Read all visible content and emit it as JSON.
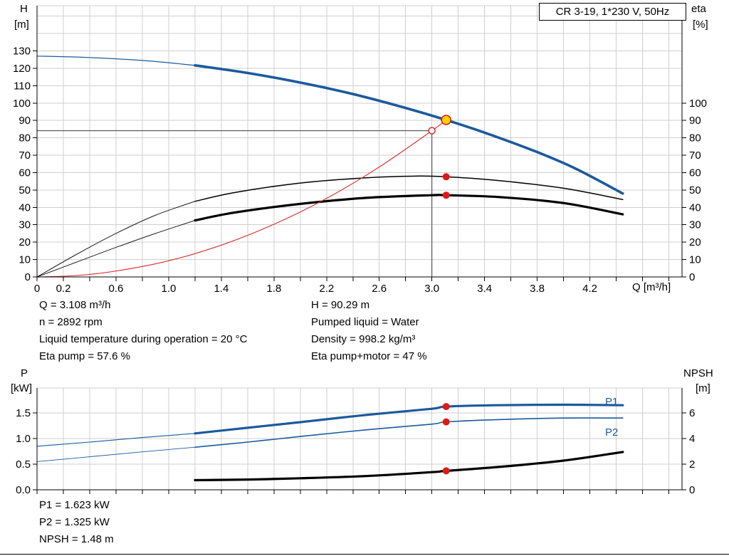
{
  "title_box": "CR 3-19, 1*230 V, 50Hz",
  "axis_unit_labels": {
    "h": "H",
    "h_unit": "[m]",
    "eta": "eta",
    "eta_unit": "[%]",
    "q": "Q [m³/h]",
    "p": "P",
    "p_unit": "[kW]",
    "npsh": "NPSH",
    "npsh_unit": "[m]"
  },
  "curve_labels": {
    "p1": "P1",
    "p2": "P2"
  },
  "results_top": {
    "left": [
      "Q = 3.108 m³/h",
      "n = 2892 rpm",
      "Liquid temperature during operation = 20 °C",
      "Eta pump = 57.6 %"
    ],
    "right": [
      "H = 90.29 m",
      "Pumped liquid = Water",
      "Density = 998.2 kg/m³",
      "Eta pump+motor = 47 %"
    ]
  },
  "results_bottom": [
    "P1 = 1.623 kW",
    "P2 = 1.325 kW",
    "NPSH = 1.48 m"
  ],
  "colors": {
    "curve_blue": "#1c5a9c",
    "curve_red": "#d83030",
    "grid": "#cfcfcf",
    "guide": "#3a3a3a",
    "axis": "#000000",
    "point_red": "#e01818",
    "point_yellow": "#ffd400"
  },
  "chart_data": [
    {
      "id": "top",
      "type": "line",
      "title": "CR 3-19, 1*230 V, 50Hz",
      "xlabel": "Q [m³/h]",
      "ylabel_left": "H [m]",
      "ylabel_right": "eta [%]",
      "xlim": [
        0,
        4.9
      ],
      "ylim_left": [
        0,
        156
      ],
      "ylim_right": [
        0,
        156
      ],
      "xtick_step": 0.2,
      "grid_ystep": 10,
      "xticks_labeled": [
        "0",
        "0.2",
        "0.6",
        "1.0",
        "1.4",
        "1.8",
        "2.2",
        "2.6",
        "3.0",
        "3.4",
        "3.8",
        "4.2"
      ],
      "yticks_left": [
        "0",
        "10",
        "20",
        "30",
        "40",
        "50",
        "60",
        "70",
        "80",
        "90",
        "100",
        "110",
        "120",
        "130"
      ],
      "yticks_right": [
        "0",
        "10",
        "20",
        "30",
        "40",
        "50",
        "60",
        "70",
        "80",
        "90",
        "100"
      ],
      "guides": {
        "duty_q": 3.0,
        "duty_h": 84.1
      },
      "series": [
        {
          "name": "head-curve-low-flow",
          "axis": "left",
          "color": "#1c5a9c",
          "width": 1.2,
          "x": [
            0,
            0.4,
            0.8,
            1.2
          ],
          "y": [
            127,
            126.2,
            124.5,
            121.7
          ]
        },
        {
          "name": "head-curve",
          "axis": "left",
          "color": "#1c5a9c",
          "width": 3.6,
          "x": [
            1.2,
            1.6,
            2.0,
            2.4,
            2.8,
            3.108,
            3.4,
            3.8,
            4.1,
            4.45
          ],
          "y": [
            121.7,
            117.3,
            111.8,
            105.2,
            97.2,
            90.29,
            83,
            71.8,
            62,
            48
          ]
        },
        {
          "name": "eta-pump-low-flow",
          "axis": "right",
          "color": "#000000",
          "width": 0.9,
          "x": [
            0,
            0.3,
            0.6,
            0.9,
            1.2
          ],
          "y": [
            0,
            13,
            25,
            35.5,
            43.5
          ]
        },
        {
          "name": "eta-pump-curve",
          "axis": "right",
          "color": "#000000",
          "width": 1.5,
          "x": [
            1.2,
            1.5,
            2.0,
            2.5,
            2.9,
            3.108,
            3.5,
            4.0,
            4.45
          ],
          "y": [
            43.5,
            48.5,
            54,
            57,
            58,
            57.6,
            55.5,
            51,
            44.5
          ]
        },
        {
          "name": "eta-pump-motor-low-flow",
          "axis": "right",
          "color": "#000000",
          "width": 0.9,
          "x": [
            0,
            0.3,
            0.6,
            0.9,
            1.2
          ],
          "y": [
            0,
            8.5,
            17,
            25,
            32.5
          ]
        },
        {
          "name": "eta-pump-motor-curve",
          "axis": "right",
          "color": "#000000",
          "width": 3.2,
          "x": [
            1.2,
            1.5,
            2.0,
            2.5,
            3.0,
            3.108,
            3.5,
            4.0,
            4.45
          ],
          "y": [
            32.5,
            37,
            42,
            45.5,
            47,
            47,
            46,
            42.5,
            36
          ]
        },
        {
          "name": "system-curve",
          "axis": "left",
          "color": "#d83030",
          "width": 1.1,
          "x": [
            0,
            0.3,
            0.6,
            1.0,
            1.4,
            1.8,
            2.2,
            2.6,
            3.0,
            3.108
          ],
          "y": [
            0,
            0.8,
            3.4,
            9.3,
            18.3,
            30.3,
            45.2,
            63.2,
            84.1,
            90.29
          ]
        }
      ],
      "points": [
        {
          "name": "requested-duty-point",
          "x": 3.0,
          "y": 84.1,
          "axis": "left",
          "style": "open-red"
        },
        {
          "name": "operating-point",
          "x": 3.108,
          "y": 90.29,
          "axis": "left",
          "style": "yellow"
        },
        {
          "name": "eta-pump-operating-point",
          "x": 3.108,
          "y": 57.6,
          "axis": "right",
          "style": "red"
        },
        {
          "name": "eta-pump-motor-operating-point",
          "x": 3.108,
          "y": 47,
          "axis": "right",
          "style": "red"
        }
      ]
    },
    {
      "id": "bottom",
      "type": "line",
      "title": "",
      "xlabel": "",
      "ylabel_left": "P [kW]",
      "ylabel_right": "NPSH [m]",
      "xlim": [
        0,
        4.9
      ],
      "ylim_left": [
        0,
        1.986
      ],
      "ylim_right": [
        0,
        7.944
      ],
      "xtick_step": 0.2,
      "grid_ystep": 0.5,
      "xticks_labeled": [],
      "yticks_left": [
        "0.0",
        "0.5",
        "1.0",
        "1.5"
      ],
      "yticks_right": [
        "0",
        "2",
        "4",
        "6"
      ],
      "series": [
        {
          "name": "p1-low-flow",
          "axis": "left",
          "color": "#1c5a9c",
          "width": 1.1,
          "x": [
            0,
            0.4,
            0.8,
            1.2
          ],
          "y": [
            0.85,
            0.93,
            1.02,
            1.1
          ]
        },
        {
          "name": "p1-curve",
          "axis": "left",
          "color": "#1c5a9c",
          "width": 3.2,
          "x": [
            1.2,
            1.6,
            2.0,
            2.5,
            3.0,
            3.108,
            3.5,
            4.0,
            4.45
          ],
          "y": [
            1.1,
            1.21,
            1.32,
            1.46,
            1.58,
            1.623,
            1.65,
            1.66,
            1.65
          ]
        },
        {
          "name": "p2-low-flow",
          "axis": "left",
          "color": "#1c5a9c",
          "width": 0.9,
          "x": [
            0,
            0.4,
            0.8,
            1.2
          ],
          "y": [
            0.55,
            0.645,
            0.74,
            0.83
          ]
        },
        {
          "name": "p2-curve",
          "axis": "left",
          "color": "#1c5a9c",
          "width": 1.6,
          "x": [
            1.2,
            1.6,
            2.0,
            2.5,
            3.0,
            3.108,
            3.5,
            4.0,
            4.45
          ],
          "y": [
            0.83,
            0.93,
            1.04,
            1.17,
            1.28,
            1.325,
            1.37,
            1.4,
            1.4
          ]
        },
        {
          "name": "npsh-curve",
          "axis": "right",
          "color": "#000000",
          "width": 3.2,
          "x": [
            1.2,
            1.6,
            2.0,
            2.5,
            3.0,
            3.108,
            3.5,
            4.0,
            4.45
          ],
          "y": [
            0.75,
            0.8,
            0.9,
            1.07,
            1.38,
            1.48,
            1.78,
            2.28,
            2.95
          ]
        }
      ],
      "points": [
        {
          "name": "p1-operating-point",
          "x": 3.108,
          "y": 1.623,
          "axis": "left",
          "style": "red"
        },
        {
          "name": "p2-operating-point",
          "x": 3.108,
          "y": 1.325,
          "axis": "left",
          "style": "red"
        },
        {
          "name": "npsh-operating-point",
          "x": 3.108,
          "y": 1.48,
          "axis": "right",
          "style": "red"
        }
      ]
    }
  ]
}
